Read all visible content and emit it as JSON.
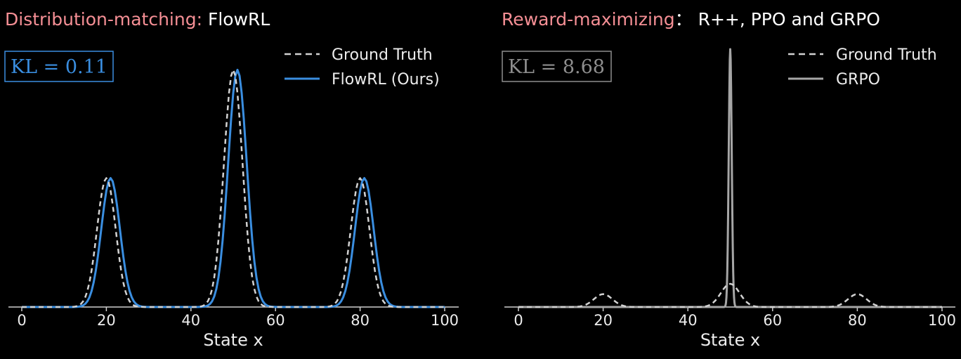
{
  "colors": {
    "background": "#000000",
    "title_accent": "#f58f95",
    "title_text": "#ffffff",
    "flowrl": "#3a8ee0",
    "grpo": "#a6a6a6",
    "ground_truth": "#d2d2d2",
    "axis": "#cfcfcf"
  },
  "chart_data": [
    {
      "type": "line",
      "title_prefix": "Distribution-matching:",
      "title_suffix": " FlowRL",
      "xlabel": "State x",
      "ylabel": "",
      "xlim": [
        0,
        100
      ],
      "xticks": [
        0,
        20,
        40,
        60,
        80,
        100
      ],
      "xtick_labels": [
        "0",
        "20",
        "40",
        "60",
        "80",
        "100"
      ],
      "yticks_shown": false,
      "grid": false,
      "legend_position": "top-right",
      "annotation": {
        "text": "KL = 0.11",
        "position": "top-left",
        "color": "#3a8ee0"
      },
      "series": [
        {
          "name": "Ground Truth",
          "style": "dashed",
          "color": "#d2d2d2",
          "mixture": [
            {
              "mean": 20,
              "sd": 2.2,
              "peak": 0.5
            },
            {
              "mean": 50,
              "sd": 2.2,
              "peak": 0.92
            },
            {
              "mean": 80,
              "sd": 2.2,
              "peak": 0.5
            }
          ]
        },
        {
          "name": "FlowRL (Ours)",
          "style": "solid",
          "color": "#3a8ee0",
          "mixture": [
            {
              "mean": 21,
              "sd": 2.2,
              "peak": 0.5
            },
            {
              "mean": 51,
              "sd": 2.2,
              "peak": 0.92
            },
            {
              "mean": 81,
              "sd": 2.2,
              "peak": 0.5
            }
          ]
        }
      ]
    },
    {
      "type": "line",
      "title_prefix": "Reward-maximizing",
      "title_suffix": "： R++, PPO and GRPO",
      "xlabel": "State x",
      "ylabel": "",
      "xlim": [
        0,
        100
      ],
      "xticks": [
        0,
        20,
        40,
        60,
        80,
        100
      ],
      "xtick_labels": [
        "0",
        "20",
        "40",
        "60",
        "80",
        "100"
      ],
      "yticks_shown": false,
      "grid": false,
      "legend_position": "top-right",
      "annotation": {
        "text": "KL = 8.68",
        "position": "top-left",
        "color": "#8e8e8e"
      },
      "series": [
        {
          "name": "Ground Truth",
          "style": "dashed",
          "color": "#d2d2d2",
          "mixture": [
            {
              "mean": 20,
              "sd": 2.2,
              "peak": 0.05
            },
            {
              "mean": 50,
              "sd": 2.2,
              "peak": 0.09
            },
            {
              "mean": 80,
              "sd": 2.2,
              "peak": 0.05
            }
          ]
        },
        {
          "name": "GRPO",
          "style": "solid",
          "color": "#a6a6a6",
          "mixture": [
            {
              "mean": 50,
              "sd": 0.35,
              "peak": 1.0
            }
          ]
        }
      ]
    }
  ]
}
